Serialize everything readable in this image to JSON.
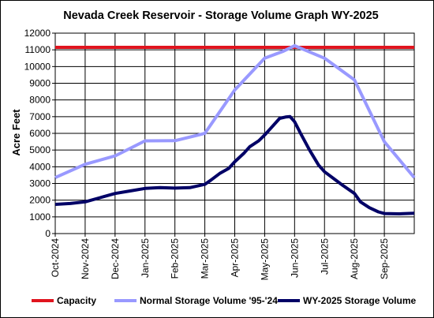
{
  "chart_data": {
    "type": "line",
    "title": "Nevada Creek Reservoir - Storage Volume Graph WY-2025",
    "ylabel": "Acre Feet",
    "xlabel": "",
    "ylim": [
      0,
      12000
    ],
    "yticks": [
      0,
      1000,
      2000,
      3000,
      4000,
      5000,
      6000,
      7000,
      8000,
      9000,
      10000,
      11000,
      12000
    ],
    "xlim": [
      0,
      12
    ],
    "xtick_labels": [
      "Oct-2024",
      "Nov-2024",
      "Dec-2024",
      "Jan-2025",
      "Feb-2025",
      "Mar-2025",
      "Apr-2025",
      "May-2025",
      "Jun-2025",
      "Jul-2025",
      "Aug-2025",
      "Sep-2025"
    ],
    "grid": true,
    "legend_position": "bottom",
    "series": [
      {
        "name": "Capacity",
        "color": "#e0141e",
        "x": [
          0,
          12
        ],
        "y": [
          11150,
          11150
        ]
      },
      {
        "name": "Normal Storage Volume '95-'24",
        "color": "#9999ff",
        "x": [
          0,
          1,
          2,
          3,
          4,
          5,
          6,
          7,
          7.6,
          8,
          9,
          10,
          11,
          12
        ],
        "y": [
          3350,
          4150,
          4650,
          5550,
          5560,
          6000,
          8600,
          10500,
          10900,
          11250,
          10500,
          9200,
          5500,
          3350
        ]
      },
      {
        "name": "WY-2025 Storage Volume",
        "color": "#000066",
        "x": [
          0,
          0.5,
          1,
          1.5,
          2,
          2.5,
          3,
          3.5,
          4,
          4.5,
          5,
          5.2,
          5.5,
          5.8,
          6,
          6.3,
          6.5,
          6.8,
          7,
          7.2,
          7.5,
          7.7,
          7.85,
          8,
          8.2,
          8.5,
          8.8,
          9,
          9.3,
          9.6,
          10,
          10.2,
          10.5,
          10.8,
          11,
          11.5,
          12
        ],
        "y": [
          1750,
          1800,
          1900,
          2150,
          2400,
          2550,
          2700,
          2750,
          2720,
          2750,
          2950,
          3200,
          3600,
          3900,
          4300,
          4800,
          5200,
          5550,
          5900,
          6300,
          6900,
          6980,
          7000,
          6700,
          6000,
          5000,
          4100,
          3700,
          3300,
          2900,
          2400,
          1900,
          1550,
          1300,
          1200,
          1180,
          1220
        ]
      }
    ]
  }
}
